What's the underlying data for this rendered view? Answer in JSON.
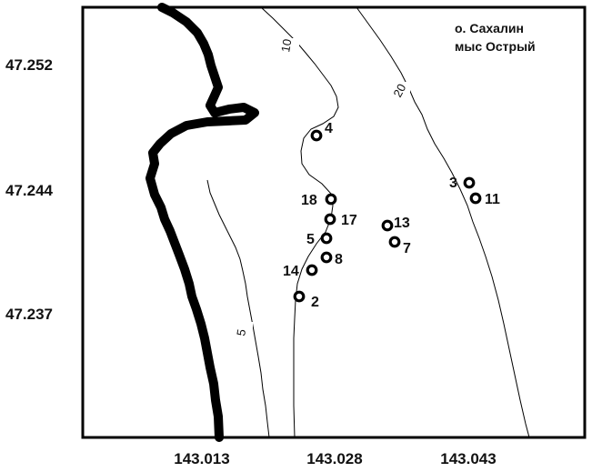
{
  "map": {
    "title_lines": [
      "о. Сахалин",
      "мыс Острый"
    ],
    "axes": {
      "x_ticks": [
        "143.013",
        "143.028",
        "143.043"
      ],
      "y_ticks": [
        "47.252",
        "47.244",
        "47.237"
      ]
    },
    "contours": [
      {
        "label": "10",
        "depth": 10
      },
      {
        "label": "20",
        "depth": 20
      },
      {
        "label": "5",
        "depth": 5
      }
    ],
    "stations": [
      {
        "label": "4"
      },
      {
        "label": "18"
      },
      {
        "label": "17"
      },
      {
        "label": "5"
      },
      {
        "label": "8"
      },
      {
        "label": "14"
      },
      {
        "label": "2"
      },
      {
        "label": "13"
      },
      {
        "label": "7"
      },
      {
        "label": "3"
      },
      {
        "label": "11"
      }
    ]
  }
}
